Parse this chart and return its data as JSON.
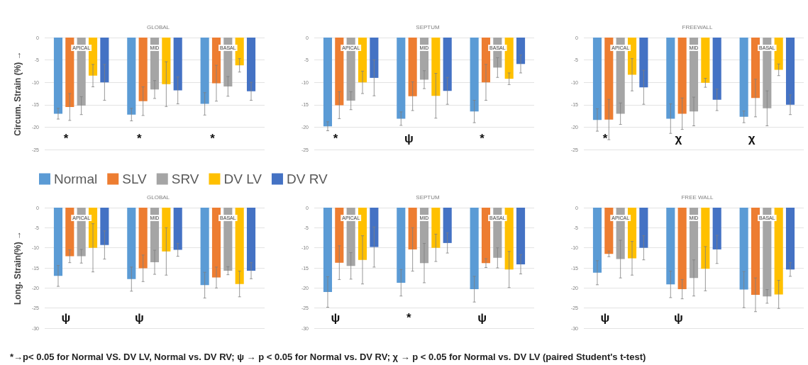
{
  "chart_data": [
    {
      "type": "bar",
      "title": "GLOBAL",
      "ylabel": "Circum. Strain (%) →",
      "categories": [
        "APICAL",
        "MID",
        "BASAL"
      ],
      "ylim": [
        -25,
        0
      ],
      "yticks": [
        0,
        -5,
        -10,
        -15,
        -20,
        -25
      ],
      "grid": "y",
      "legend": "bottom",
      "series": [
        {
          "name": "Normal",
          "color": "#5b9bd5",
          "values": [
            -17,
            -17.2,
            -14.8
          ],
          "errors": [
            1.2,
            1.4,
            2.5
          ]
        },
        {
          "name": "SLV",
          "color": "#ed7d31",
          "values": [
            -15.5,
            -14.2,
            -10.2
          ],
          "errors": [
            3,
            3.2,
            4
          ]
        },
        {
          "name": "SRV",
          "color": "#a5a5a5",
          "values": [
            -15.2,
            -11.6,
            -10.9
          ],
          "errors": [
            2,
            2,
            2.2
          ]
        },
        {
          "name": "DV LV",
          "color": "#ffc000",
          "values": [
            -8.5,
            -10.4,
            -6.2
          ],
          "errors": [
            2.5,
            5,
            1.5
          ]
        },
        {
          "name": "DV RV",
          "color": "#4472c4",
          "values": [
            -10,
            -11.8,
            -12
          ],
          "errors": [
            4,
            3,
            2
          ]
        }
      ],
      "annotations": [
        "*",
        "*",
        "*"
      ]
    },
    {
      "type": "bar",
      "title": "SEPTUM",
      "categories": [
        "APICAL",
        "MID",
        "BASAL"
      ],
      "ylim": [
        -25,
        0
      ],
      "yticks": [
        0,
        -5,
        -10,
        -15,
        -20,
        -25
      ],
      "grid": "y",
      "series": [
        {
          "color": "#5b9bd5",
          "values": [
            -19.8,
            -18.1,
            -16.5
          ],
          "errors": [
            1,
            1.5,
            2.5
          ]
        },
        {
          "color": "#ed7d31",
          "values": [
            -15.1,
            -13.1,
            -10
          ],
          "errors": [
            3,
            3.2,
            4
          ]
        },
        {
          "color": "#a5a5a5",
          "values": [
            -14.1,
            -9.4,
            -6.7
          ],
          "errors": [
            2,
            2,
            2.2
          ]
        },
        {
          "color": "#ffc000",
          "values": [
            -10,
            -13,
            -9.2
          ],
          "errors": [
            2.5,
            5,
            1.3
          ]
        },
        {
          "color": "#4472c4",
          "values": [
            -9,
            -11.9,
            -5.9
          ],
          "errors": [
            4,
            3,
            2
          ]
        }
      ],
      "annotations": [
        "*",
        "ψ",
        "*"
      ]
    },
    {
      "type": "bar",
      "title": "FREEWALL",
      "categories": [
        "APICAL",
        "MID",
        "BASAL"
      ],
      "ylim": [
        -25,
        0
      ],
      "yticks": [
        0,
        -5,
        -10,
        -15,
        -20,
        -25
      ],
      "grid": "y",
      "series": [
        {
          "color": "#5b9bd5",
          "values": [
            -18.4,
            -18.1,
            -17.7
          ],
          "errors": [
            2.5,
            3.3,
            1.3
          ]
        },
        {
          "color": "#ed7d31",
          "values": [
            -18.3,
            -17,
            -13.5
          ],
          "errors": [
            4.5,
            3.5,
            4.2
          ]
        },
        {
          "color": "#a5a5a5",
          "values": [
            -17,
            -16.5,
            -15.8
          ],
          "errors": [
            2.4,
            3.2,
            3.9
          ]
        },
        {
          "color": "#ffc000",
          "values": [
            -8.3,
            -10.1,
            -7.2
          ],
          "errors": [
            3.6,
            1,
            1.3
          ]
        },
        {
          "color": "#4472c4",
          "values": [
            -11.1,
            -13.9,
            -15
          ],
          "errors": [
            3.8,
            2.4,
            2.2
          ]
        }
      ],
      "annotations": [
        "*",
        "χ",
        "χ"
      ]
    },
    {
      "type": "bar",
      "title": "GLOBAL",
      "ylabel": "Long. Strain(%) →",
      "categories": [
        "APICAL",
        "MID",
        "BASAL"
      ],
      "ylim": [
        -30,
        0
      ],
      "yticks": [
        0,
        -5,
        -10,
        -15,
        -20,
        -25,
        -30
      ],
      "grid": "y",
      "series": [
        {
          "color": "#5b9bd5",
          "values": [
            -17,
            -17.8,
            -19.3
          ],
          "errors": [
            2.6,
            3,
            3.2
          ]
        },
        {
          "color": "#ed7d31",
          "values": [
            -12.1,
            -15.1,
            -17.4
          ],
          "errors": [
            1.6,
            3.3,
            2.6
          ]
        },
        {
          "color": "#a5a5a5",
          "values": [
            -12.1,
            -13.6,
            -15.7
          ],
          "errors": [
            1.7,
            3,
            1
          ]
        },
        {
          "color": "#ffc000",
          "values": [
            -10,
            -10.9,
            -19
          ],
          "errors": [
            6,
            5.9,
            3.2
          ]
        },
        {
          "color": "#4472c4",
          "values": [
            -9.3,
            -10.5,
            -15.7
          ],
          "errors": [
            3.5,
            1.6,
            2
          ]
        }
      ],
      "annotations": [
        "ψ",
        "ψ",
        "*→p< 0.05 for Normal VS. DV LV, Normal vs. DV RV; ψ → p < 0.05 for Normal vs. DV RV; χ → p < 0.05 for Normal vs. DV LV (paired Student's t-test)"
      ]
    },
    {
      "type": "bar",
      "title": "SEPTUM",
      "categories": [
        "APICAL",
        "MID",
        "BASAL"
      ],
      "ylim": [
        -30,
        0
      ],
      "yticks": [
        0,
        -5,
        -10,
        -15,
        -20,
        -25,
        -30
      ],
      "grid": "y",
      "series": [
        {
          "color": "#5b9bd5",
          "values": [
            -21,
            -18.7,
            -20.3
          ],
          "errors": [
            3.8,
            3.3,
            3.2
          ]
        },
        {
          "color": "#ed7d31",
          "values": [
            -13.7,
            -10.4,
            -13.8
          ],
          "errors": [
            4.2,
            5.4,
            1.1
          ]
        },
        {
          "color": "#a5a5a5",
          "values": [
            -14.5,
            -13.8,
            -12.5
          ],
          "errors": [
            3.3,
            4.9,
            2.5
          ]
        },
        {
          "color": "#ffc000",
          "values": [
            -13,
            -10,
            -15.4
          ],
          "errors": [
            6,
            3.4,
            4.5
          ]
        },
        {
          "color": "#4472c4",
          "values": [
            -9.8,
            -8.8,
            -14.1
          ],
          "errors": [
            5,
            2.5,
            2.4
          ]
        }
      ],
      "annotations": [
        "ψ",
        "*",
        "ψ"
      ]
    },
    {
      "type": "bar",
      "title": "FREE WALL",
      "categories": [
        "APICAL",
        "MID",
        "BASAL"
      ],
      "ylim": [
        -30,
        0
      ],
      "yticks": [
        0,
        -5,
        -10,
        -15,
        -20,
        -25,
        -30
      ],
      "grid": "y",
      "series": [
        {
          "color": "#5b9bd5",
          "values": [
            -16.2,
            -19.1,
            -20.4
          ],
          "errors": [
            3,
            3.3,
            4.5
          ]
        },
        {
          "color": "#ed7d31",
          "values": [
            -11.5,
            -20.3,
            -21.7
          ],
          "errors": [
            0.7,
            2.4,
            4.2
          ]
        },
        {
          "color": "#a5a5a5",
          "values": [
            -12.8,
            -17.5,
            -22.1
          ],
          "errors": [
            4.7,
            4.5,
            1.7
          ]
        },
        {
          "color": "#ffc000",
          "values": [
            -12.6,
            -15.2,
            -21.6
          ],
          "errors": [
            4.2,
            5.5,
            3.5
          ]
        },
        {
          "color": "#4472c4",
          "values": [
            -10,
            -10.4,
            -15.4
          ],
          "errors": [
            3,
            3.5,
            1.7
          ]
        }
      ],
      "annotations": [
        "ψ",
        "ψ"
      ]
    }
  ]
}
